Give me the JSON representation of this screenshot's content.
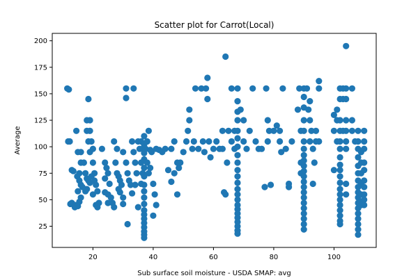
{
  "chart_data": {
    "type": "scatter",
    "title": "Scatter plot for Carrot(Local)",
    "xlabel": "Sub surface soil moisture - USDA SMAP: avg",
    "ylabel": "Average",
    "xlim": [
      6.5,
      114
    ],
    "ylim": [
      5,
      207
    ],
    "xticks": [
      20,
      40,
      60,
      80,
      100
    ],
    "yticks": [
      25,
      50,
      75,
      100,
      125,
      150,
      175,
      200
    ],
    "grid": false,
    "legend": "none",
    "marker_color": "#1f77b4",
    "series": [
      {
        "points": [
          [
            11.5,
            155
          ],
          [
            12,
            154
          ],
          [
            11.8,
            105
          ],
          [
            12.3,
            105
          ],
          [
            13,
            78
          ],
          [
            13.5,
            77
          ],
          [
            12.5,
            46
          ],
          [
            13,
            47
          ],
          [
            14,
            45
          ],
          [
            14,
            43
          ],
          [
            15,
            44
          ],
          [
            15.5,
            48
          ],
          [
            14.5,
            115
          ],
          [
            15,
            95
          ],
          [
            16,
            95
          ],
          [
            16,
            85
          ],
          [
            15.5,
            75
          ],
          [
            14.8,
            72
          ],
          [
            15.5,
            68
          ],
          [
            16,
            64
          ],
          [
            15,
            58
          ],
          [
            16,
            52
          ],
          [
            16.5,
            62
          ],
          [
            17,
            85
          ],
          [
            17.5,
            75
          ],
          [
            18,
            70
          ],
          [
            18.5,
            68
          ],
          [
            17.5,
            58
          ],
          [
            18,
            60
          ],
          [
            19,
            66
          ],
          [
            18.5,
            145
          ],
          [
            18,
            125
          ],
          [
            19,
            125
          ],
          [
            18,
            115
          ],
          [
            19,
            115
          ],
          [
            18.5,
            105
          ],
          [
            19.5,
            105
          ],
          [
            19,
            95
          ],
          [
            20,
            98
          ],
          [
            20,
            85
          ],
          [
            20.5,
            75
          ],
          [
            19.5,
            72
          ],
          [
            20.5,
            68
          ],
          [
            21,
            64
          ],
          [
            21.5,
            58
          ],
          [
            20,
            55
          ],
          [
            21,
            45
          ],
          [
            21.5,
            43
          ],
          [
            22,
            47
          ],
          [
            23,
            98
          ],
          [
            24,
            85
          ],
          [
            24.5,
            80
          ],
          [
            25,
            75
          ],
          [
            24,
            70
          ],
          [
            25.5,
            65
          ],
          [
            24,
            57
          ],
          [
            25,
            55
          ],
          [
            26,
            52
          ],
          [
            25,
            47
          ],
          [
            26.5,
            47
          ],
          [
            27,
            43
          ],
          [
            27,
            105
          ],
          [
            28,
            98
          ],
          [
            27.5,
            85
          ],
          [
            28,
            75
          ],
          [
            28.5,
            72
          ],
          [
            29,
            68
          ],
          [
            29.5,
            64
          ],
          [
            28.5,
            60
          ],
          [
            29,
            57
          ],
          [
            30,
            52
          ],
          [
            30,
            46
          ],
          [
            31,
            155
          ],
          [
            31,
            146
          ],
          [
            31.5,
            27
          ],
          [
            30,
            95
          ],
          [
            31,
            85
          ],
          [
            31.5,
            75
          ],
          [
            32,
            68
          ],
          [
            32.5,
            64
          ],
          [
            33,
            56
          ],
          [
            33.5,
            155
          ],
          [
            33,
            105
          ],
          [
            33.5,
            95
          ],
          [
            34,
            85
          ],
          [
            34.5,
            75
          ],
          [
            34,
            64
          ],
          [
            35,
            105
          ],
          [
            35.5,
            98
          ],
          [
            35,
            43
          ],
          [
            36,
            105
          ],
          [
            36.5,
            98
          ],
          [
            36,
            85
          ],
          [
            36.5,
            75
          ],
          [
            36,
            65
          ],
          [
            37,
            110
          ],
          [
            37,
            102
          ],
          [
            37,
            94
          ],
          [
            37,
            88
          ],
          [
            37,
            80
          ],
          [
            37,
            72
          ],
          [
            37,
            64
          ],
          [
            37,
            58
          ],
          [
            37,
            52
          ],
          [
            37,
            46
          ],
          [
            37,
            40
          ],
          [
            37,
            36
          ],
          [
            37,
            32
          ],
          [
            37,
            28
          ],
          [
            37,
            24
          ],
          [
            37,
            20
          ],
          [
            37,
            17
          ],
          [
            37,
            14
          ],
          [
            37.5,
            98
          ],
          [
            38,
            105
          ],
          [
            38.5,
            115
          ],
          [
            38,
            85
          ],
          [
            38.5,
            75
          ],
          [
            39,
            97
          ],
          [
            39.5,
            95
          ],
          [
            39,
            80
          ],
          [
            40,
            65
          ],
          [
            40.5,
            55
          ],
          [
            41,
            45
          ],
          [
            40,
            35
          ],
          [
            41,
            98
          ],
          [
            42,
            97
          ],
          [
            43,
            95
          ],
          [
            44,
            98
          ],
          [
            45,
            78
          ],
          [
            46,
            67
          ],
          [
            46,
            98
          ],
          [
            47,
            75
          ],
          [
            47,
            105
          ],
          [
            48,
            85
          ],
          [
            48.5,
            80
          ],
          [
            48,
            55
          ],
          [
            49,
            85
          ],
          [
            50,
            95
          ],
          [
            51,
            105
          ],
          [
            51.5,
            115
          ],
          [
            52,
            125
          ],
          [
            52,
            135
          ],
          [
            53,
            98
          ],
          [
            53.5,
            105
          ],
          [
            54,
            155
          ],
          [
            55,
            98
          ],
          [
            56,
            155
          ],
          [
            56.5,
            105
          ],
          [
            57,
            95
          ],
          [
            57.5,
            155
          ],
          [
            58,
            165
          ],
          [
            58,
            145
          ],
          [
            58.5,
            105
          ],
          [
            59,
            90
          ],
          [
            60,
            98
          ],
          [
            61,
            105
          ],
          [
            62,
            98
          ],
          [
            63,
            115
          ],
          [
            63,
            98
          ],
          [
            64,
            185
          ],
          [
            63.5,
            57
          ],
          [
            64,
            55
          ],
          [
            64.5,
            85
          ],
          [
            65,
            115
          ],
          [
            66,
            105
          ],
          [
            66,
            155
          ],
          [
            67,
            115
          ],
          [
            67,
            98
          ],
          [
            68,
            155
          ],
          [
            68,
            143
          ],
          [
            68,
            133
          ],
          [
            68,
            125
          ],
          [
            68,
            115
          ],
          [
            68,
            108
          ],
          [
            68,
            100
          ],
          [
            68,
            92
          ],
          [
            68,
            85
          ],
          [
            68,
            78
          ],
          [
            68,
            72
          ],
          [
            68,
            66
          ],
          [
            68,
            60
          ],
          [
            68,
            55
          ],
          [
            68,
            50
          ],
          [
            68,
            45
          ],
          [
            68,
            41
          ],
          [
            68,
            37
          ],
          [
            68,
            33
          ],
          [
            68,
            29
          ],
          [
            68,
            25
          ],
          [
            68,
            21
          ],
          [
            68,
            18
          ],
          [
            69,
            135
          ],
          [
            70,
            125
          ],
          [
            70,
            105
          ],
          [
            71,
            98
          ],
          [
            72,
            115
          ],
          [
            73,
            155
          ],
          [
            74,
            105
          ],
          [
            75,
            98
          ],
          [
            76,
            98
          ],
          [
            77,
            62
          ],
          [
            77.5,
            155
          ],
          [
            78,
            125
          ],
          [
            78.5,
            115
          ],
          [
            78,
            105
          ],
          [
            79,
            64
          ],
          [
            80,
            115
          ],
          [
            81,
            120
          ],
          [
            82,
            115
          ],
          [
            82.5,
            95
          ],
          [
            82,
            105
          ],
          [
            83,
            155
          ],
          [
            84,
            98
          ],
          [
            85,
            65
          ],
          [
            85,
            62
          ],
          [
            86,
            105
          ],
          [
            88,
            135
          ],
          [
            88.5,
            155
          ],
          [
            89,
            115
          ],
          [
            89,
            85
          ],
          [
            89,
            75
          ],
          [
            90,
            155
          ],
          [
            90,
            147
          ],
          [
            90,
            137
          ],
          [
            90,
            125
          ],
          [
            90,
            115
          ],
          [
            90,
            105
          ],
          [
            90,
            98
          ],
          [
            90,
            92
          ],
          [
            90,
            87
          ],
          [
            90,
            82
          ],
          [
            90,
            77
          ],
          [
            90,
            72
          ],
          [
            90,
            67
          ],
          [
            90,
            62
          ],
          [
            90,
            57
          ],
          [
            90,
            52
          ],
          [
            90,
            47
          ],
          [
            90,
            42
          ],
          [
            90,
            37
          ],
          [
            90,
            32
          ],
          [
            90,
            27
          ],
          [
            90,
            22
          ],
          [
            91,
            155
          ],
          [
            91.5,
            135
          ],
          [
            92,
            143
          ],
          [
            92,
            125
          ],
          [
            92.5,
            115
          ],
          [
            92,
            105
          ],
          [
            93,
            65
          ],
          [
            93,
            98
          ],
          [
            93.5,
            85
          ],
          [
            94,
            105
          ],
          [
            94,
            115
          ],
          [
            95,
            162
          ],
          [
            95,
            155
          ],
          [
            95,
            105
          ],
          [
            100,
            130
          ],
          [
            100,
            115
          ],
          [
            100,
            78
          ],
          [
            101,
            135
          ],
          [
            101,
            125
          ],
          [
            101,
            105
          ],
          [
            102,
            155
          ],
          [
            102,
            145
          ],
          [
            102,
            125
          ],
          [
            102,
            115
          ],
          [
            102,
            105
          ],
          [
            102,
            98
          ],
          [
            102,
            90
          ],
          [
            102,
            83
          ],
          [
            102,
            78
          ],
          [
            102,
            72
          ],
          [
            102,
            66
          ],
          [
            102,
            60
          ],
          [
            102,
            55
          ],
          [
            102,
            50
          ],
          [
            102,
            45
          ],
          [
            102,
            40
          ],
          [
            102,
            35
          ],
          [
            102,
            30
          ],
          [
            102,
            27
          ],
          [
            103,
            155
          ],
          [
            103,
            145
          ],
          [
            103,
            115
          ],
          [
            104,
            195
          ],
          [
            104,
            155
          ],
          [
            104,
            145
          ],
          [
            104,
            125
          ],
          [
            104,
            115
          ],
          [
            104,
            105
          ],
          [
            104,
            98
          ],
          [
            104,
            65
          ],
          [
            104,
            55
          ],
          [
            106,
            155
          ],
          [
            106,
            125
          ],
          [
            106,
            115
          ],
          [
            107,
            105
          ],
          [
            108,
            115
          ],
          [
            108,
            105
          ],
          [
            108,
            98
          ],
          [
            108,
            90
          ],
          [
            108,
            82
          ],
          [
            108,
            75
          ],
          [
            108,
            68
          ],
          [
            108,
            62
          ],
          [
            108,
            57
          ],
          [
            108,
            52
          ],
          [
            108,
            47
          ],
          [
            108,
            42
          ],
          [
            108,
            37
          ],
          [
            108,
            32
          ],
          [
            108,
            27
          ],
          [
            108,
            22
          ],
          [
            108,
            17
          ],
          [
            109,
            95
          ],
          [
            109,
            85
          ],
          [
            109,
            75
          ],
          [
            109,
            65
          ],
          [
            109,
            55
          ],
          [
            109,
            48
          ],
          [
            109,
            45
          ],
          [
            110,
            115
          ],
          [
            110,
            105
          ],
          [
            110,
            98
          ],
          [
            110,
            85
          ],
          [
            110,
            78
          ],
          [
            110,
            68
          ],
          [
            110,
            62
          ],
          [
            110,
            55
          ],
          [
            110,
            50
          ],
          [
            110,
            45
          ]
        ]
      }
    ]
  }
}
